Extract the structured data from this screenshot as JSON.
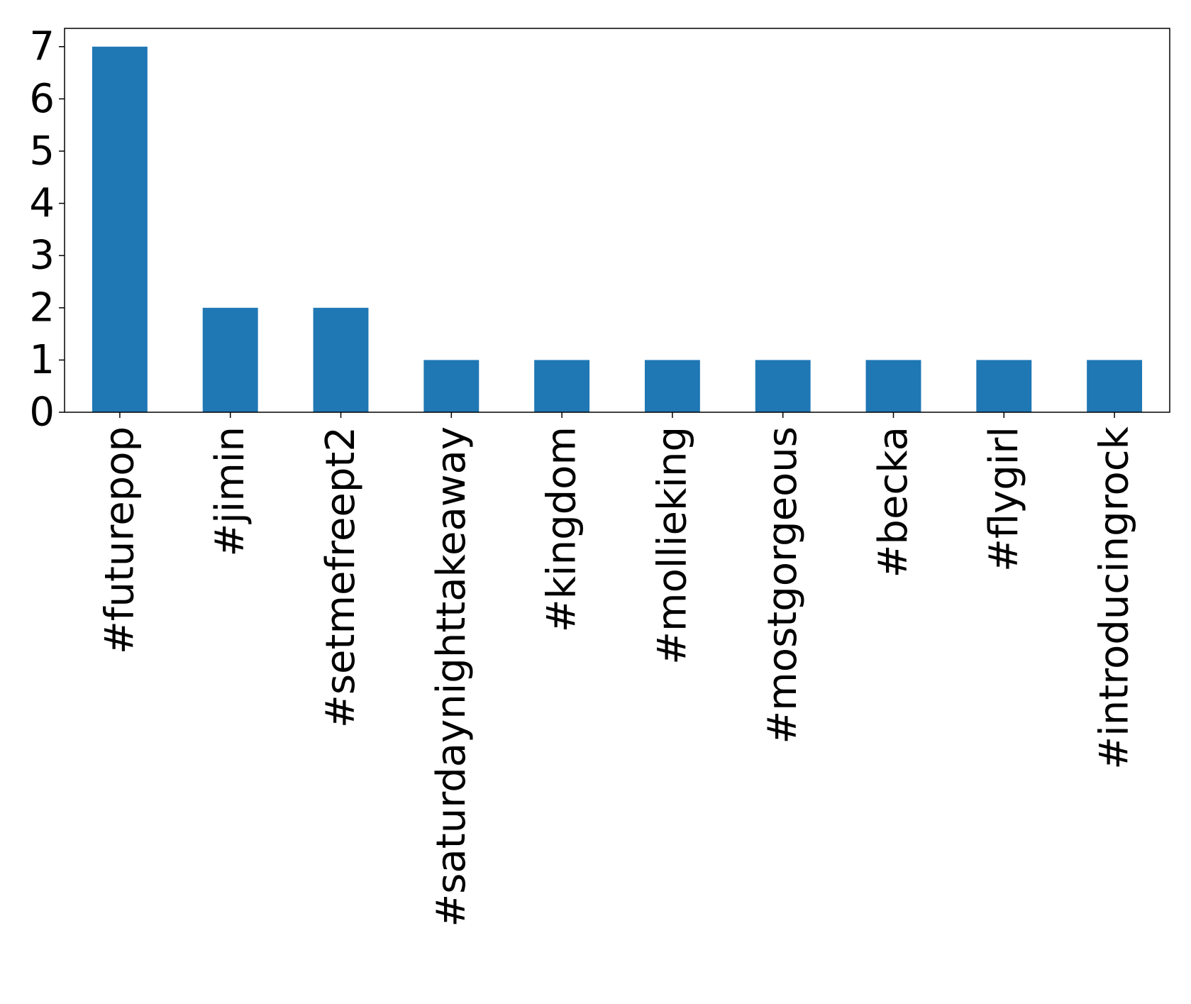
{
  "chart_data": {
    "type": "bar",
    "categories": [
      "#futurepop",
      "#jimin",
      "#setmefreept2",
      "#saturdaynighttakeaway",
      "#kingdom",
      "#mollieking",
      "#mostgorgeous",
      "#becka",
      "#flygirl",
      "#introducingrock"
    ],
    "values": [
      7,
      2,
      2,
      1,
      1,
      1,
      1,
      1,
      1,
      1
    ],
    "title": "",
    "xlabel": "",
    "ylabel": "",
    "ylim": [
      0,
      7.35
    ],
    "yticks": [
      0,
      1,
      2,
      3,
      4,
      5,
      6,
      7
    ],
    "grid": false,
    "bar_color": "#1f77b4"
  }
}
